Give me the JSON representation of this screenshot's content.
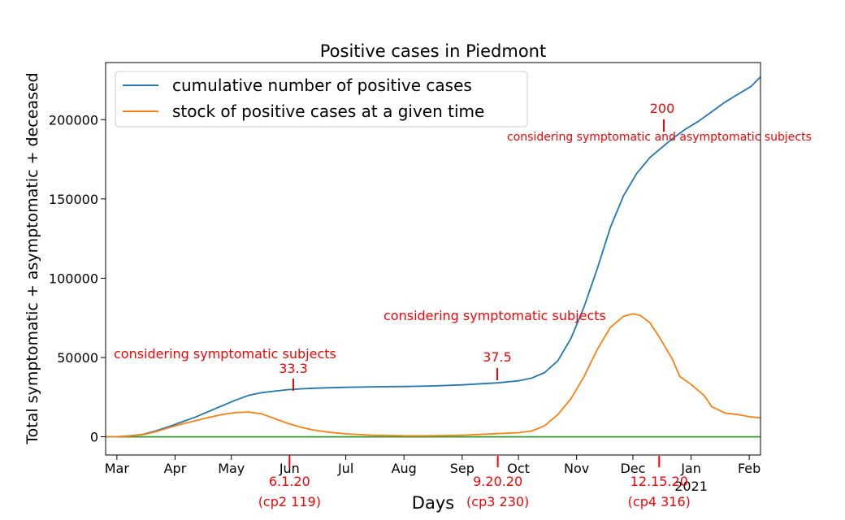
{
  "chart_data": {
    "type": "line",
    "title": "Positive cases in Piedmont",
    "xlabel": "Days",
    "ylabel": "Total symptomatic + asymptomatic + deceased",
    "x_range": [
      "2020-02-24",
      "2021-02-07"
    ],
    "ylim": [
      -11500,
      236000
    ],
    "grid": false,
    "legend_position": "top-left",
    "x_ticks": [
      {
        "date": "2020-03-01",
        "label": "Mar"
      },
      {
        "date": "2020-04-01",
        "label": "Apr"
      },
      {
        "date": "2020-05-01",
        "label": "May"
      },
      {
        "date": "2020-06-01",
        "label": "Jun"
      },
      {
        "date": "2020-07-01",
        "label": "Jul"
      },
      {
        "date": "2020-08-01",
        "label": "Aug"
      },
      {
        "date": "2020-09-01",
        "label": "Sep"
      },
      {
        "date": "2020-10-01",
        "label": "Oct"
      },
      {
        "date": "2020-11-01",
        "label": "Nov"
      },
      {
        "date": "2020-12-01",
        "label": "Dec"
      },
      {
        "date": "2021-01-01",
        "label": "Jan",
        "sublabel": "2021"
      },
      {
        "date": "2021-02-01",
        "label": "Feb"
      }
    ],
    "y_ticks": [
      0,
      50000,
      100000,
      150000,
      200000
    ],
    "series": [
      {
        "name": "cumulative number of positive cases",
        "color": "#1f77b4",
        "points": [
          [
            "2020-02-24",
            0
          ],
          [
            "2020-03-01",
            5
          ],
          [
            "2020-03-08",
            600
          ],
          [
            "2020-03-15",
            1500
          ],
          [
            "2020-03-22",
            3800
          ],
          [
            "2020-03-29",
            6500
          ],
          [
            "2020-04-05",
            9500
          ],
          [
            "2020-04-12",
            12500
          ],
          [
            "2020-04-19",
            16000
          ],
          [
            "2020-04-26",
            19500
          ],
          [
            "2020-05-03",
            23000
          ],
          [
            "2020-05-10",
            26000
          ],
          [
            "2020-05-17",
            27800
          ],
          [
            "2020-05-24",
            28800
          ],
          [
            "2020-05-31",
            29700
          ],
          [
            "2020-06-07",
            30200
          ],
          [
            "2020-06-14",
            30600
          ],
          [
            "2020-06-21",
            30900
          ],
          [
            "2020-07-01",
            31200
          ],
          [
            "2020-07-15",
            31500
          ],
          [
            "2020-08-01",
            31700
          ],
          [
            "2020-08-15",
            32000
          ],
          [
            "2020-09-01",
            32700
          ],
          [
            "2020-09-15",
            33700
          ],
          [
            "2020-09-20",
            34000
          ],
          [
            "2020-10-01",
            35300
          ],
          [
            "2020-10-08",
            37000
          ],
          [
            "2020-10-15",
            40500
          ],
          [
            "2020-10-22",
            48000
          ],
          [
            "2020-10-29",
            62000
          ],
          [
            "2020-11-05",
            82000
          ],
          [
            "2020-11-12",
            106000
          ],
          [
            "2020-11-19",
            132000
          ],
          [
            "2020-11-26",
            152000
          ],
          [
            "2020-12-03",
            166000
          ],
          [
            "2020-12-10",
            176000
          ],
          [
            "2020-12-15",
            181000
          ],
          [
            "2020-12-22",
            188000
          ],
          [
            "2020-12-29",
            194000
          ],
          [
            "2021-01-05",
            199000
          ],
          [
            "2021-01-12",
            205000
          ],
          [
            "2021-01-19",
            211000
          ],
          [
            "2021-01-26",
            216000
          ],
          [
            "2021-02-02",
            221000
          ],
          [
            "2021-02-07",
            227000
          ]
        ]
      },
      {
        "name": "stock of positive cases at a given time",
        "color": "#ff7f0e",
        "points": [
          [
            "2020-02-24",
            0
          ],
          [
            "2020-03-01",
            5
          ],
          [
            "2020-03-08",
            500
          ],
          [
            "2020-03-15",
            1300
          ],
          [
            "2020-03-22",
            3300
          ],
          [
            "2020-03-29",
            5800
          ],
          [
            "2020-04-05",
            8200
          ],
          [
            "2020-04-12",
            10200
          ],
          [
            "2020-04-19",
            12200
          ],
          [
            "2020-04-26",
            14000
          ],
          [
            "2020-05-03",
            15200
          ],
          [
            "2020-05-10",
            15600
          ],
          [
            "2020-05-17",
            14500
          ],
          [
            "2020-05-24",
            11500
          ],
          [
            "2020-05-31",
            8500
          ],
          [
            "2020-06-07",
            6000
          ],
          [
            "2020-06-14",
            4200
          ],
          [
            "2020-06-21",
            3000
          ],
          [
            "2020-07-01",
            1800
          ],
          [
            "2020-07-15",
            1000
          ],
          [
            "2020-08-01",
            600
          ],
          [
            "2020-08-15",
            600
          ],
          [
            "2020-09-01",
            1000
          ],
          [
            "2020-09-15",
            1700
          ],
          [
            "2020-10-01",
            2600
          ],
          [
            "2020-10-08",
            3600
          ],
          [
            "2020-10-15",
            7000
          ],
          [
            "2020-10-22",
            14000
          ],
          [
            "2020-10-29",
            24000
          ],
          [
            "2020-11-05",
            38000
          ],
          [
            "2020-11-12",
            55000
          ],
          [
            "2020-11-19",
            69000
          ],
          [
            "2020-11-26",
            76000
          ],
          [
            "2020-12-01",
            77500
          ],
          [
            "2020-12-05",
            76500
          ],
          [
            "2020-12-10",
            72000
          ],
          [
            "2020-12-15",
            63000
          ],
          [
            "2020-12-22",
            49000
          ],
          [
            "2020-12-26",
            38000
          ],
          [
            "2021-01-01",
            33000
          ],
          [
            "2021-01-08",
            26000
          ],
          [
            "2021-01-12",
            19000
          ],
          [
            "2021-01-19",
            15000
          ],
          [
            "2021-01-26",
            14000
          ],
          [
            "2021-02-02",
            12500
          ],
          [
            "2021-02-07",
            12000
          ]
        ]
      },
      {
        "name": "",
        "color": "#2ca02c",
        "points": [
          [
            "2020-02-24",
            0
          ],
          [
            "2021-02-07",
            0
          ]
        ]
      }
    ],
    "annotations": [
      {
        "text": "considering symptomatic subjects",
        "color": "#ff0000"
      },
      {
        "text": "33.3",
        "color": "#ff0000"
      },
      {
        "text": "considering symptomatic subjects",
        "color": "#ff0000"
      },
      {
        "text": "37.5",
        "color": "#ff0000"
      },
      {
        "text": "200",
        "color": "#ff0000"
      },
      {
        "text": "considering symptomatic and asymptomatic subjects",
        "color": "#ff0000"
      }
    ],
    "date_markers": [
      {
        "date": "2020-06-01",
        "label": "6.1.20",
        "note": "(cp2 119)",
        "color": "#ff0000"
      },
      {
        "date": "2020-09-20",
        "label": "9.20.20",
        "note": "(cp3 230)",
        "color": "#ff0000"
      },
      {
        "date": "2020-12-15",
        "label": "12.15.20",
        "note": "(cp4 316)",
        "color": "#ff0000"
      }
    ]
  }
}
